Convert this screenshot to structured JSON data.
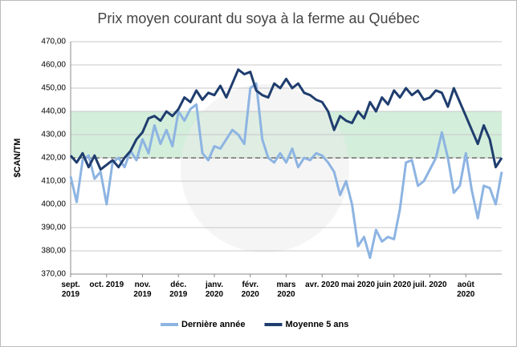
{
  "chart_data": {
    "type": "line",
    "title": "Prix moyen courant du soya à la ferme au Québec",
    "y_label": "$CAN/TM",
    "categories": [
      "sept. 2019",
      null,
      null,
      null,
      null,
      null,
      "oct. 2019",
      null,
      null,
      null,
      null,
      null,
      "nov. 2019",
      null,
      null,
      null,
      null,
      null,
      "déc. 2019",
      null,
      null,
      null,
      null,
      null,
      "janv. 2020",
      null,
      null,
      null,
      null,
      null,
      "févr. 2020",
      null,
      null,
      null,
      null,
      null,
      "mars 2020",
      null,
      null,
      null,
      null,
      null,
      "avr. 2020",
      null,
      null,
      null,
      null,
      null,
      "mai 2020",
      null,
      null,
      null,
      null,
      null,
      "juin 2020",
      null,
      null,
      null,
      null,
      null,
      "juil. 2020",
      null,
      null,
      null,
      null,
      null,
      "août 2020",
      null,
      null,
      null,
      null,
      null,
      null
    ],
    "series": [
      {
        "name": "Dernière année",
        "color": "#8db4e2",
        "values": [
          412,
          401,
          419,
          421,
          411,
          414,
          400,
          418,
          420,
          416,
          423,
          419,
          428,
          422,
          434,
          426,
          432,
          425,
          440,
          436,
          441,
          443,
          422,
          419,
          425,
          424,
          428,
          432,
          430,
          426,
          450,
          452,
          428,
          420,
          418,
          422,
          418,
          424,
          416,
          420,
          419,
          422,
          421,
          418,
          414,
          404,
          410,
          400,
          382,
          386,
          377,
          389,
          384,
          386,
          385,
          398,
          418,
          419,
          408,
          410,
          415,
          420,
          431,
          420,
          405,
          408,
          422,
          406,
          394,
          408,
          407,
          400,
          414
        ]
      },
      {
        "name": "Moyenne 5 ans",
        "color": "#1f3d6e",
        "values": [
          421,
          418,
          422,
          416,
          421,
          415,
          417,
          419,
          416,
          420,
          423,
          428,
          431,
          437,
          438,
          436,
          440,
          438,
          441,
          446,
          444,
          449,
          445,
          448,
          447,
          451,
          446,
          452,
          458,
          456,
          457,
          449,
          447,
          446,
          452,
          450,
          454,
          450,
          452,
          448,
          447,
          445,
          444,
          440,
          432,
          438,
          436,
          435,
          440,
          437,
          444,
          440,
          446,
          443,
          449,
          446,
          450,
          447,
          449,
          445,
          446,
          449,
          448,
          442,
          450,
          444,
          438,
          432,
          426,
          434,
          428,
          416,
          420
        ]
      }
    ],
    "ylim": [
      370,
      470
    ],
    "yticks": [
      {
        "value": 370,
        "label": "370,00"
      },
      {
        "value": 380,
        "label": "380,00"
      },
      {
        "value": 390,
        "label": "390,00"
      },
      {
        "value": 400,
        "label": "400,00"
      },
      {
        "value": 410,
        "label": "410,00"
      },
      {
        "value": 420,
        "label": "420,00"
      },
      {
        "value": 430,
        "label": "430,00"
      },
      {
        "value": 440,
        "label": "440,00"
      },
      {
        "value": 450,
        "label": "450,00"
      },
      {
        "value": 460,
        "label": "460,00"
      },
      {
        "value": 470,
        "label": "470,00"
      }
    ],
    "grid": true,
    "shaded_range": {
      "range": [
        420,
        440
      ],
      "color": "#d3eedb"
    },
    "reference_line": 420,
    "legend": "bottom"
  }
}
